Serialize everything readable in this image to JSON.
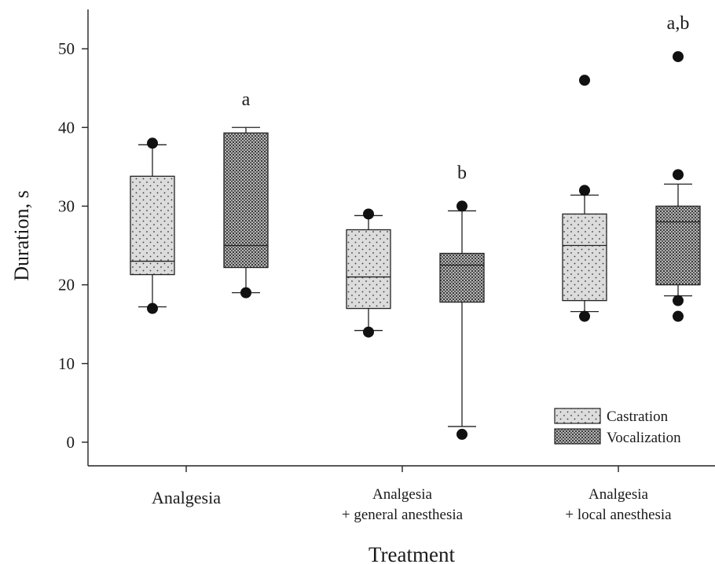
{
  "chart_data": {
    "type": "box",
    "title": "",
    "xlabel": "Treatment",
    "ylabel": "Duration, s",
    "ylim": [
      -3,
      55
    ],
    "yticks": [
      0,
      10,
      20,
      30,
      40,
      50
    ],
    "grid": false,
    "legend_position": "bottom-right",
    "categories": [
      [
        "Analgesia"
      ],
      [
        "Analgesia",
        "+ general anesthesia"
      ],
      [
        "Analgesia",
        "+ local anesthesia"
      ]
    ],
    "series": [
      {
        "name": "Castration",
        "pattern": "light-dotted",
        "boxes": [
          {
            "whisker_low": 17.2,
            "q1": 21.3,
            "median": 23,
            "q3": 33.8,
            "whisker_high": 37.8,
            "outliers": [
              17,
              38
            ]
          },
          {
            "whisker_low": 14.2,
            "q1": 17,
            "median": 21,
            "q3": 27,
            "whisker_high": 28.8,
            "outliers": [
              14,
              29
            ]
          },
          {
            "whisker_low": 16.6,
            "q1": 18,
            "median": 25,
            "q3": 29,
            "whisker_high": 31.4,
            "outliers": [
              16,
              32,
              46
            ]
          }
        ]
      },
      {
        "name": "Vocalization",
        "pattern": "dark-crosshatch",
        "boxes": [
          {
            "whisker_low": 19,
            "q1": 22.2,
            "median": 25,
            "q3": 39.3,
            "whisker_high": 40,
            "outliers": [
              19
            ]
          },
          {
            "whisker_low": 2,
            "q1": 17.8,
            "median": 22.5,
            "q3": 24,
            "whisker_high": 29.4,
            "outliers": [
              1,
              30
            ]
          },
          {
            "whisker_low": 18.6,
            "q1": 20,
            "median": 28,
            "q3": 30,
            "whisker_high": 32.8,
            "outliers": [
              16,
              18,
              34,
              49
            ]
          }
        ]
      }
    ],
    "annotations": [
      {
        "text": "a",
        "category": 0,
        "series": 1,
        "y": 42.8
      },
      {
        "text": "b",
        "category": 1,
        "series": 1,
        "y": 33.5
      },
      {
        "text": "a,b",
        "category": 2,
        "series": 1,
        "y": 52.5
      }
    ],
    "colors": {
      "box_fill_castration": "#dcdcdc",
      "box_fill_vocalization": "#a9a9a9",
      "outlier": "#111111",
      "line": "#222222"
    }
  }
}
